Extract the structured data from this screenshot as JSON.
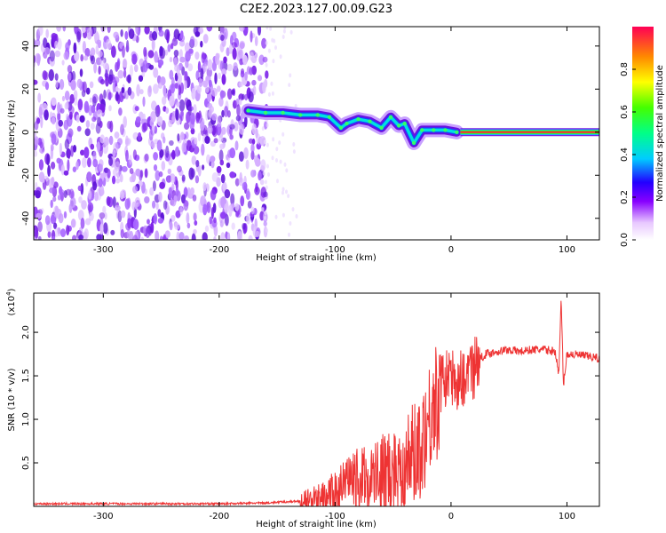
{
  "title": "C2E2.2023.127.00.09.G23",
  "chart_data": [
    {
      "type": "heatmap",
      "xlabel": "Height of straight line (km)",
      "ylabel": "Frequency (Hz)",
      "xlim": [
        -360,
        128
      ],
      "ylim": [
        -50,
        49
      ],
      "x_ticks": [
        -300,
        -200,
        -100,
        0,
        100
      ],
      "y_ticks": [
        -40,
        -20,
        0,
        20,
        40
      ],
      "colorbar": {
        "label": "Normalized spectral amplitude",
        "range": [
          0,
          1
        ],
        "ticks": [
          0.0,
          0.2,
          0.4,
          0.6,
          0.8
        ]
      },
      "regions": {
        "noise_x_range": [
          -360,
          -163
        ],
        "noise_freq_range": [
          -50,
          49
        ],
        "tone_x_range": [
          8,
          128
        ],
        "tone_frequency": 0
      },
      "ridge": [
        {
          "x": -175,
          "f": 10
        },
        {
          "x": -160,
          "f": 9
        },
        {
          "x": -145,
          "f": 9
        },
        {
          "x": -130,
          "f": 8
        },
        {
          "x": -115,
          "f": 8
        },
        {
          "x": -105,
          "f": 7
        },
        {
          "x": -95,
          "f": 2
        },
        {
          "x": -90,
          "f": 4
        },
        {
          "x": -80,
          "f": 6
        },
        {
          "x": -70,
          "f": 5
        },
        {
          "x": -60,
          "f": 2
        },
        {
          "x": -52,
          "f": 7
        },
        {
          "x": -45,
          "f": 3
        },
        {
          "x": -40,
          "f": 4
        },
        {
          "x": -32,
          "f": -5
        },
        {
          "x": -25,
          "f": 1
        },
        {
          "x": -15,
          "f": 1
        },
        {
          "x": -5,
          "f": 1
        },
        {
          "x": 5,
          "f": 0
        }
      ]
    },
    {
      "type": "line",
      "xlabel": "Height of straight line (km)",
      "ylabel": "SNR (10 * v/v)",
      "y_multiplier": "(x10",
      "y_multiplier_exp": "4",
      "y_multiplier_close": ")",
      "xlim": [
        -360,
        128
      ],
      "ylim": [
        0,
        2.45
      ],
      "x_ticks": [
        -300,
        -200,
        -100,
        0,
        100
      ],
      "y_ticks": [
        0.5,
        1.0,
        1.5,
        2.0
      ],
      "color": "#ee3333",
      "x": [
        -360,
        -300,
        -250,
        -200,
        -160,
        -130,
        -110,
        -100,
        -90,
        -80,
        -70,
        -60,
        -50,
        -40,
        -30,
        -25,
        -20,
        -15,
        -10,
        -5,
        0,
        5,
        10,
        15,
        20,
        25,
        30,
        40,
        50,
        60,
        70,
        80,
        90,
        93,
        95,
        97,
        100,
        110,
        120,
        128
      ],
      "y": [
        0.03,
        0.03,
        0.03,
        0.03,
        0.04,
        0.06,
        0.12,
        0.2,
        0.3,
        0.38,
        0.4,
        0.45,
        0.52,
        0.6,
        0.75,
        0.9,
        1.1,
        1.3,
        1.45,
        1.55,
        1.55,
        1.5,
        1.55,
        1.6,
        1.65,
        1.7,
        1.75,
        1.78,
        1.8,
        1.78,
        1.8,
        1.8,
        1.78,
        1.5,
        2.4,
        1.4,
        1.75,
        1.74,
        1.72,
        1.7
      ]
    }
  ]
}
